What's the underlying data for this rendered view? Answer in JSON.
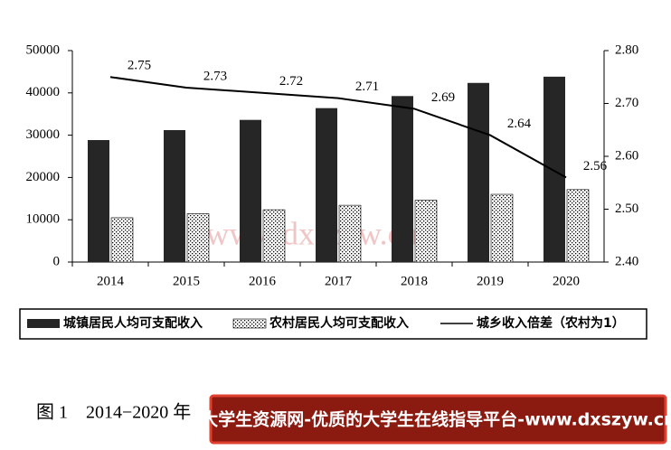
{
  "chart_data": {
    "type": "bar-line",
    "categories": [
      "2014",
      "2015",
      "2016",
      "2017",
      "2018",
      "2019",
      "2020"
    ],
    "series": [
      {
        "name": "城镇居民人均可支配收入",
        "color": "#262626",
        "values": [
          28844,
          31195,
          33616,
          36396,
          39251,
          42359,
          43834
        ]
      },
      {
        "name": "农村居民人均可支配收入",
        "color": "#000000",
        "values": [
          10489,
          11422,
          12363,
          13432,
          14617,
          16021,
          17131
        ]
      },
      {
        "name": "城乡收入倍差（农村为1）",
        "color": "#000000",
        "axis": "y2",
        "values": [
          2.75,
          2.73,
          2.72,
          2.71,
          2.69,
          2.64,
          2.56
        ]
      }
    ],
    "ylim": [
      0,
      50000
    ],
    "yticks": [
      0,
      10000,
      20000,
      30000,
      40000,
      50000
    ],
    "y2lim": [
      2.4,
      2.8
    ],
    "y2ticks": [
      {
        "value": 2.4,
        "label": "2.40"
      },
      {
        "value": 2.5,
        "label": "2.50"
      },
      {
        "value": 2.6,
        "label": "2.60"
      },
      {
        "value": 2.7,
        "label": "2.70"
      },
      {
        "value": 2.8,
        "label": "2.80"
      }
    ],
    "caption": "图 1　2014−2020 年",
    "watermark": "www.dxszyw.cn",
    "banner": "大学生资源网-优质的大学生在线指导平台-www.dxszyw.cn"
  }
}
